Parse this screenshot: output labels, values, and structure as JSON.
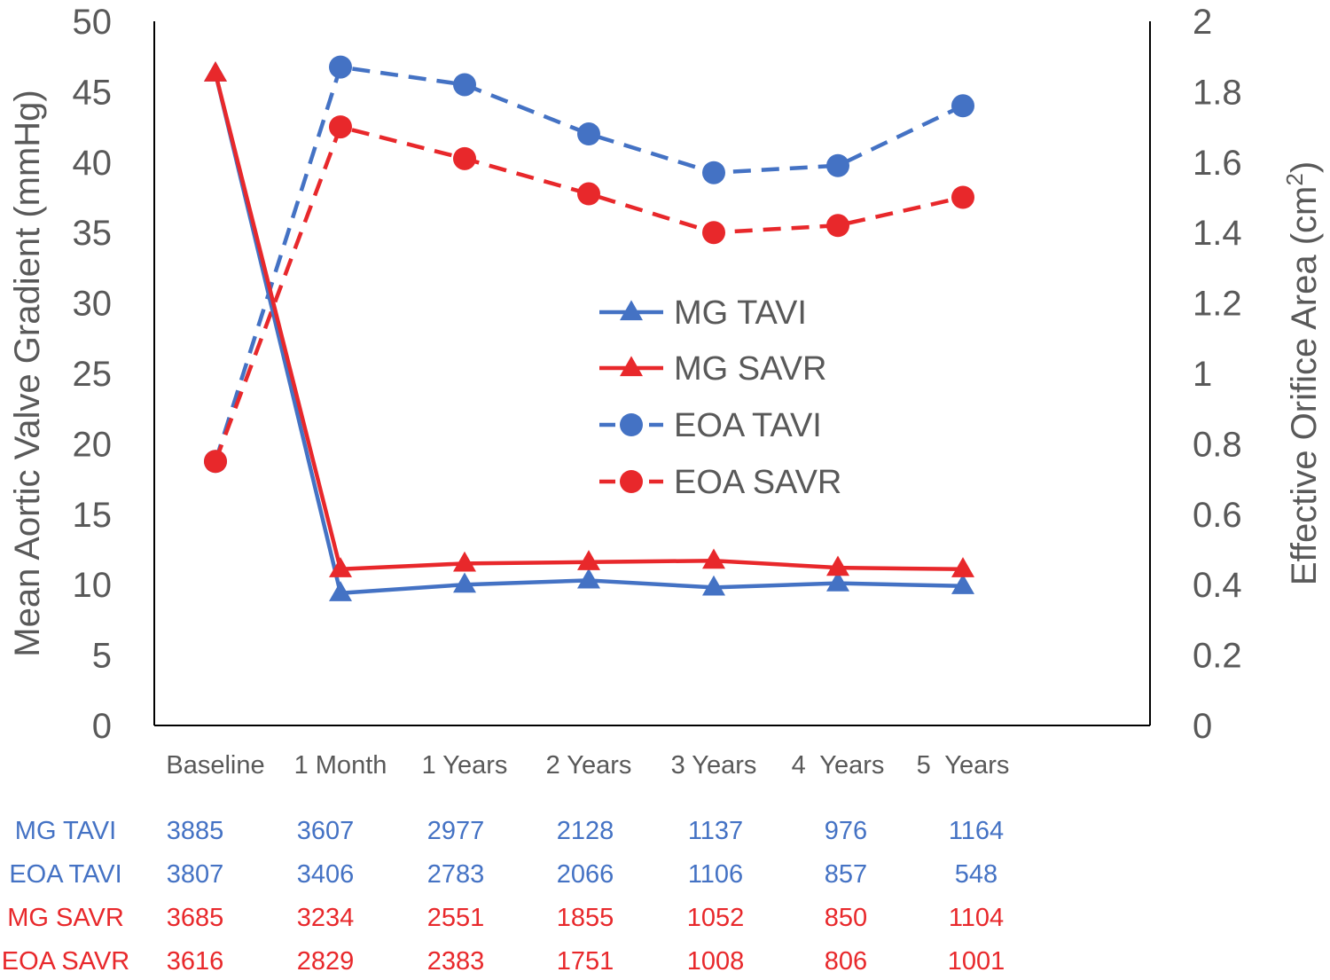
{
  "chart_data": {
    "type": "line",
    "categories": [
      "Baseline",
      "1 Month",
      "1 Years",
      "2 Years",
      "3 Years",
      "4  Years",
      "5  Years"
    ],
    "y_left": {
      "label": "Mean Aortic Valve Gradient (mmHg)",
      "min": 0,
      "max": 50,
      "step": 5,
      "ticks": [
        "0",
        "5",
        "10",
        "15",
        "20",
        "25",
        "30",
        "35",
        "40",
        "45",
        "50"
      ]
    },
    "y_right": {
      "label": "Effective Orifice Area (cm",
      "label_sup": "2",
      "label_end": ")",
      "min": 0,
      "max": 2,
      "step": 0.2,
      "ticks": [
        "0",
        "0.2",
        "0.4",
        "0.6",
        "0.8",
        "1",
        "1.2",
        "1.4",
        "1.6",
        "1.8",
        "2"
      ]
    },
    "series": [
      {
        "name": "MG TAVI",
        "axis": "left",
        "color": "#4472C4",
        "marker": "triangle",
        "dash": false,
        "values": [
          46.3,
          9.4,
          10.0,
          10.3,
          9.8,
          10.1,
          9.9
        ]
      },
      {
        "name": "MG SAVR",
        "axis": "left",
        "color": "#E8282B",
        "marker": "triangle",
        "dash": false,
        "values": [
          46.3,
          11.1,
          11.5,
          11.6,
          11.7,
          11.2,
          11.1
        ]
      },
      {
        "name": "EOA TAVI",
        "axis": "right",
        "color": "#4472C4",
        "marker": "circle",
        "dash": true,
        "values": [
          0.75,
          1.87,
          1.82,
          1.68,
          1.57,
          1.59,
          1.76
        ]
      },
      {
        "name": "EOA SAVR",
        "axis": "right",
        "color": "#E8282B",
        "marker": "circle",
        "dash": true,
        "values": [
          0.75,
          1.7,
          1.61,
          1.51,
          1.4,
          1.42,
          1.5
        ]
      }
    ],
    "legend_position": "center",
    "grid": false,
    "numbers_at_risk": [
      {
        "label": "MG TAVI",
        "color": "#4472C4",
        "values": [
          "3885",
          "3607",
          "2977",
          "2128",
          "1137",
          "976",
          "1164"
        ]
      },
      {
        "label": "EOA TAVI",
        "color": "#4472C4",
        "values": [
          "3807",
          "3406",
          "2783",
          "2066",
          "1106",
          "857",
          "548"
        ]
      },
      {
        "label": "MG SAVR",
        "color": "#E8282B",
        "values": [
          "3685",
          "3234",
          "2551",
          "1855",
          "1052",
          "850",
          "1104"
        ]
      },
      {
        "label": "EOA SAVR",
        "color": "#E8282B",
        "values": [
          "3616",
          "2829",
          "2383",
          "1751",
          "1008",
          "806",
          "1001"
        ]
      }
    ]
  }
}
